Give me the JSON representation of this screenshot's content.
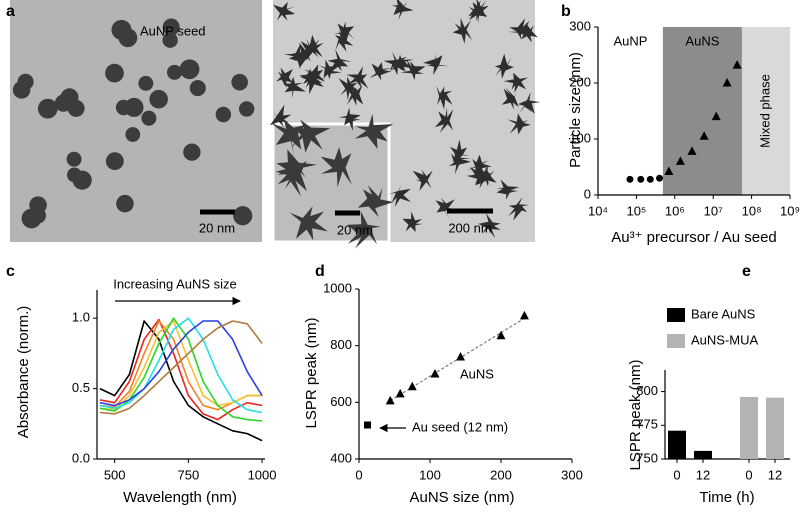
{
  "panel_labels": [
    "a",
    "b",
    "c",
    "d",
    "e"
  ],
  "images": {
    "seed_label": "AuNP seed",
    "seed_scale": "20 nm",
    "inset_scale": "20 nm",
    "star_scale": "200 nm"
  },
  "chart_data": [
    {
      "type": "scatter",
      "xscale": "log",
      "y_label": "Particle size (nm)",
      "x_label": "Au³⁺ precursor / Au seed",
      "xlim": [
        10000,
        1000000000
      ],
      "xticks": [
        {
          "value": 10000,
          "label": "10⁴"
        },
        {
          "value": 100000,
          "label": "10⁵"
        },
        {
          "value": 1000000,
          "label": "10⁶"
        },
        {
          "value": 10000000,
          "label": "10⁷"
        },
        {
          "value": 100000000,
          "label": "10⁸"
        },
        {
          "value": 1000000000,
          "label": "10⁹"
        }
      ],
      "ylim": [
        0,
        300
      ],
      "yticks": [
        0,
        100,
        200,
        300
      ],
      "regions": [
        {
          "label": "AuNP",
          "range": [
            10000,
            490000
          ],
          "color": "#ffffff"
        },
        {
          "label": "AuNS",
          "range": [
            490000,
            56000000
          ],
          "color": "#8c8c8c"
        },
        {
          "label": "Mixed phase",
          "range": [
            56000000,
            1000000000
          ],
          "color": "#d9d9d9"
        }
      ],
      "series": [
        {
          "marker": "circle",
          "color": "#000000",
          "x": [
            68000,
            130000,
            230000,
            400000
          ],
          "values": [
            28,
            28,
            28,
            30
          ]
        },
        {
          "marker": "triangle",
          "color": "#000000",
          "x": [
            700000,
            1400000,
            2800000,
            5800000,
            12000000,
            23000000,
            42000000
          ],
          "values": [
            42,
            60,
            78,
            105,
            140,
            200,
            232
          ]
        }
      ]
    },
    {
      "type": "line",
      "y_label": "Absorbance (norm.)",
      "x_label": "Wavelength (nm)",
      "annotation": "Increasing AuNS size",
      "xlim": [
        440,
        1010
      ],
      "xticks": [
        500,
        750,
        1000
      ],
      "ylim": [
        0,
        1.2
      ],
      "yticks": [
        {
          "value": 0,
          "label": "0.0"
        },
        {
          "value": 0.5,
          "label": "0.5"
        },
        {
          "value": 1,
          "label": "1.0"
        }
      ],
      "x": [
        450,
        500,
        550,
        600,
        650,
        700,
        750,
        800,
        850,
        900,
        950,
        1000
      ],
      "series": [
        {
          "color": "#000000",
          "values": [
            0.5,
            0.45,
            0.6,
            0.98,
            0.85,
            0.55,
            0.38,
            0.3,
            0.25,
            0.2,
            0.18,
            0.13
          ]
        },
        {
          "color": "#e8251f",
          "values": [
            0.42,
            0.4,
            0.55,
            0.85,
            0.99,
            0.75,
            0.45,
            0.32,
            0.28,
            0.35,
            0.4,
            0.38
          ]
        },
        {
          "color": "#f5821f",
          "values": [
            0.38,
            0.37,
            0.48,
            0.75,
            0.98,
            0.85,
            0.55,
            0.38,
            0.35,
            0.4,
            0.45,
            0.45
          ]
        },
        {
          "color": "#f2c12e",
          "values": [
            0.36,
            0.35,
            0.45,
            0.65,
            0.9,
            0.98,
            0.7,
            0.45,
            0.38,
            0.4,
            0.45,
            0.45
          ]
        },
        {
          "color": "#2bd62b",
          "values": [
            0.36,
            0.34,
            0.42,
            0.58,
            0.82,
            1.0,
            0.85,
            0.55,
            0.38,
            0.3,
            0.28,
            0.27
          ]
        },
        {
          "color": "#22e0e8",
          "values": [
            0.38,
            0.36,
            0.4,
            0.5,
            0.7,
            0.92,
            1.0,
            0.85,
            0.6,
            0.42,
            0.35,
            0.33
          ]
        },
        {
          "color": "#2a3fe0",
          "values": [
            0.4,
            0.38,
            0.42,
            0.5,
            0.62,
            0.78,
            0.9,
            0.98,
            0.98,
            0.85,
            0.62,
            0.45
          ]
        },
        {
          "color": "#b07a3c",
          "values": [
            0.33,
            0.32,
            0.36,
            0.45,
            0.55,
            0.65,
            0.75,
            0.85,
            0.93,
            0.98,
            0.96,
            0.82
          ]
        }
      ]
    },
    {
      "type": "scatter",
      "y_label": "LSPR peak (nm)",
      "x_label": "AuNS size (nm)",
      "annotations": [
        "AuNS",
        "Au seed (12 nm)"
      ],
      "xlim": [
        0,
        300
      ],
      "xticks": [
        0,
        100,
        200,
        300
      ],
      "ylim": [
        400,
        1000
      ],
      "yticks": [
        400,
        600,
        800,
        1000
      ],
      "series": [
        {
          "marker": "square",
          "color": "#000000",
          "x": [
            12
          ],
          "values": [
            520
          ]
        },
        {
          "marker": "triangle",
          "color": "#000000",
          "trend_line": true,
          "x": [
            44,
            58,
            75,
            107,
            143,
            200,
            233
          ],
          "values": [
            605,
            630,
            655,
            700,
            760,
            835,
            905
          ]
        }
      ]
    },
    {
      "type": "bar",
      "y_label": "LSPR peak (nm)",
      "x_label": "Time (h)",
      "categories": [
        "0",
        "12",
        "0",
        "12"
      ],
      "ylim": [
        750,
        816
      ],
      "yticks": [
        750,
        775,
        800
      ],
      "series": [
        {
          "name": "Bare AuNS",
          "color": "#000000",
          "values": [
            771,
            756,
            null,
            null
          ]
        },
        {
          "name": "AuNS-MUA",
          "color": "#b3b3b3",
          "values": [
            null,
            null,
            796,
            795.5
          ]
        }
      ]
    }
  ]
}
